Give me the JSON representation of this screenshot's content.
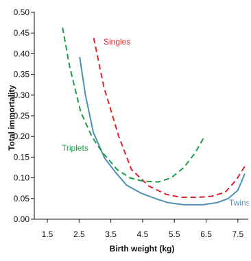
{
  "chart_data": {
    "type": "line",
    "xlabel": "Birth weight (kg)",
    "ylabel": "Total immortality",
    "xlim": [
      1.5,
      7.7
    ],
    "ylim": [
      0,
      0.5
    ],
    "x_ticks": [
      "1.5",
      "2.5",
      "3.5",
      "4.5",
      "5.5",
      "6.5",
      "7.5"
    ],
    "y_ticks": [
      "0.00",
      "0.05",
      "0.10",
      "0.15",
      "0.20",
      "0.25",
      "0.30",
      "0.35",
      "0.40",
      "0.45",
      "0.50"
    ],
    "grid": false,
    "series": [
      {
        "name": "Singles",
        "color": "#e0202a",
        "dash": "dashed",
        "x": [
          2.96,
          3.28,
          3.75,
          4.15,
          4.7,
          5.25,
          5.7,
          6.25,
          6.65,
          7.1,
          7.45,
          7.72
        ],
        "y": [
          0.438,
          0.32,
          0.2,
          0.12,
          0.08,
          0.06,
          0.053,
          0.053,
          0.055,
          0.065,
          0.095,
          0.128
        ]
      },
      {
        "name": "Twins",
        "color": "#4e8fb5",
        "dash": "solid",
        "x": [
          2.52,
          2.7,
          2.95,
          3.3,
          3.65,
          4.0,
          4.45,
          4.9,
          5.3,
          5.8,
          6.4,
          6.85,
          7.2,
          7.5,
          7.72
        ],
        "y": [
          0.392,
          0.3,
          0.21,
          0.148,
          0.113,
          0.082,
          0.063,
          0.05,
          0.04,
          0.035,
          0.035,
          0.04,
          0.05,
          0.07,
          0.11
        ]
      },
      {
        "name": "Triplets",
        "color": "#1aa043",
        "dash": "dashed",
        "x": [
          1.98,
          2.2,
          2.55,
          2.9,
          3.25,
          3.7,
          4.1,
          4.5,
          5.0,
          5.4,
          5.8,
          6.15,
          6.45
        ],
        "y": [
          0.463,
          0.37,
          0.26,
          0.2,
          0.16,
          0.12,
          0.1,
          0.092,
          0.09,
          0.1,
          0.125,
          0.16,
          0.2
        ]
      }
    ]
  }
}
